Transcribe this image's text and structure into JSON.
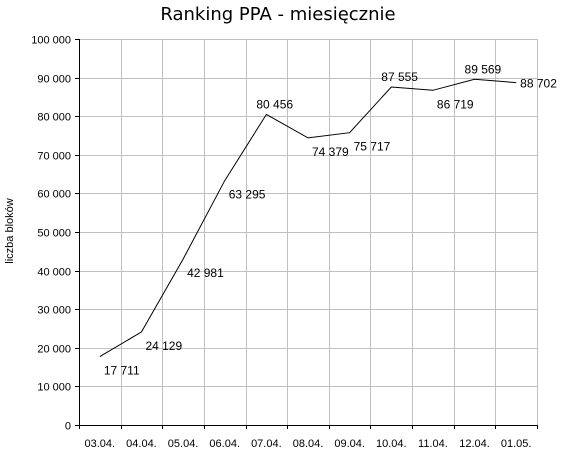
{
  "chart_data": {
    "type": "line",
    "title": "Ranking PPA - miesięcznie",
    "xlabel": "",
    "ylabel": "liczba bloków",
    "ylim": [
      0,
      100000
    ],
    "grid": true,
    "yticks": [
      "0",
      "10 000",
      "20 000",
      "30 000",
      "40 000",
      "50 000",
      "60 000",
      "70 000",
      "80 000",
      "90 000",
      "100 000"
    ],
    "categories": [
      "03.04.",
      "04.04.",
      "05.04.",
      "06.04.",
      "07.04.",
      "08.04.",
      "09.04.",
      "10.04.",
      "11.04.",
      "12.04.",
      "01.05."
    ],
    "values": [
      17711,
      24129,
      42981,
      63295,
      80456,
      74379,
      75717,
      87555,
      86719,
      89569,
      88702
    ],
    "data_labels": [
      "17 711",
      "24 129",
      "42 981",
      "63 295",
      "80 456",
      "74 379",
      "75 717",
      "87 555",
      "86 719",
      "89 569",
      "88 702"
    ]
  }
}
